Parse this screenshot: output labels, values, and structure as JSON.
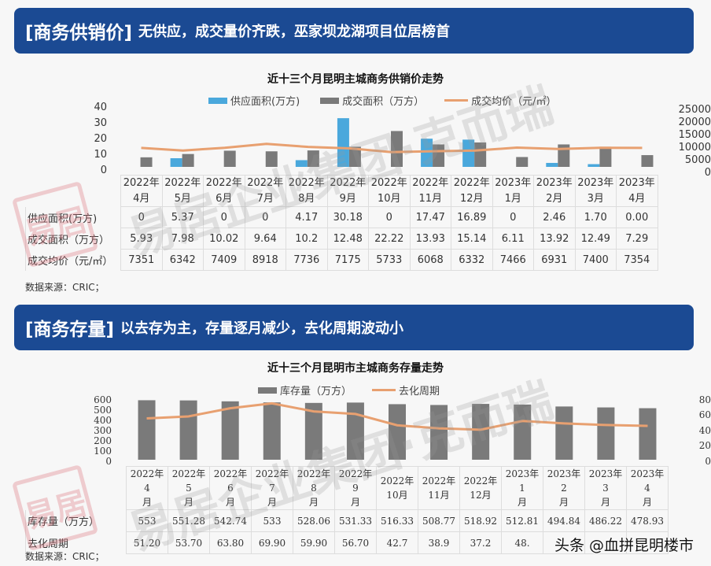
{
  "section1": {
    "tag": "[商务供销价]",
    "subtitle": "无供应，成交量价齐跌，巫家坝龙湖项目位居榜首",
    "chart_title": "近十三个月昆明主城商务供销价走势",
    "legend": [
      "供应面积(万方)",
      "成交面积（万方）",
      "成交均价（元/㎡）"
    ],
    "left_axis": [
      "40",
      "30",
      "20",
      "10",
      "0"
    ],
    "right_axis": [
      "25000",
      "20000",
      "15000",
      "10000",
      "5000",
      "0"
    ],
    "months": [
      [
        "2022年",
        "4月"
      ],
      [
        "2022年",
        "5月"
      ],
      [
        "2022年",
        "6月"
      ],
      [
        "2022年",
        "7月"
      ],
      [
        "2022年",
        "8月"
      ],
      [
        "2022年",
        "9月"
      ],
      [
        "2022年",
        "10月"
      ],
      [
        "2022年",
        "11月"
      ],
      [
        "2022年",
        "12月"
      ],
      [
        "2023年",
        "1月"
      ],
      [
        "2023年",
        "2月"
      ],
      [
        "2023年",
        "3月"
      ],
      [
        "2023年",
        "4月"
      ]
    ],
    "rows": [
      {
        "label": "供应面积(万方)",
        "values": [
          "0",
          "5.37",
          "0",
          "0",
          "4.17",
          "30.18",
          "0",
          "17.47",
          "16.89",
          "0",
          "2.46",
          "1.70",
          "0.00"
        ]
      },
      {
        "label": "成交面积（万方）",
        "values": [
          "5.93",
          "7.98",
          "10.02",
          "9.64",
          "10.2",
          "12.48",
          "22.22",
          "13.93",
          "15.14",
          "6.11",
          "13.92",
          "12.49",
          "7.29"
        ]
      },
      {
        "label": "成交均价（元/㎡）",
        "values": [
          "7351",
          "6342",
          "7409",
          "8918",
          "7736",
          "7175",
          "5733",
          "6068",
          "6332",
          "7466",
          "6931",
          "7400",
          "7354"
        ]
      }
    ],
    "source": "数据来源：CRIC；"
  },
  "section2": {
    "tag": "[商务存量]",
    "subtitle": "以去存为主，存量逐月减少，去化周期波动小",
    "chart_title": "近十三个月昆明市主城商务存量走势",
    "legend": [
      "库存量（万方）",
      "去化周期"
    ],
    "left_axis": [
      "600",
      "500",
      "400",
      "300",
      "200",
      "100",
      "0"
    ],
    "right_axis": [
      "80",
      "60",
      "40",
      "20",
      "0"
    ],
    "months": [
      [
        "2022年4",
        "月"
      ],
      [
        "2022年5",
        "月"
      ],
      [
        "2022年6",
        "月"
      ],
      [
        "2022年7",
        "月"
      ],
      [
        "2022年8",
        "月"
      ],
      [
        "2022年9",
        "月"
      ],
      [
        "2022年",
        "10月"
      ],
      [
        "2022年",
        "11月"
      ],
      [
        "2022年",
        "12月"
      ],
      [
        "2023年1",
        "月"
      ],
      [
        "2023年2",
        "月"
      ],
      [
        "2023年3",
        "月"
      ],
      [
        "2023年4",
        "月"
      ]
    ],
    "rows": [
      {
        "label": "库存量（万方）",
        "values": [
          "553",
          "551.28",
          "542.74",
          "533",
          "528.06",
          "531.33",
          "516.33",
          "508.77",
          "518.92",
          "512.81",
          "494.84",
          "486.22",
          "478.93"
        ]
      },
      {
        "label": "去化周期",
        "values": [
          "51.20",
          "53.70",
          "63.80",
          "69.90",
          "59.90",
          "56.70",
          "42.7",
          "38.9",
          "37.2",
          "48.",
          "",
          "",
          ""
        ]
      }
    ],
    "source": "数据来源：CRIC；"
  },
  "watermarks": {
    "main": "易居企业集团·克而瑞",
    "stamp": "易居",
    "footer": "头条 @血拼昆明楼市"
  },
  "colors": {
    "banner": "#1b4a93",
    "supply": "#4aa8dc",
    "deal": "#7a7a7a",
    "price_line": "#e8a070"
  },
  "chart_data": [
    {
      "type": "bar",
      "title": "近十三个月昆明主城商务供销价走势",
      "categories": [
        "2022年4月",
        "2022年5月",
        "2022年6月",
        "2022年7月",
        "2022年8月",
        "2022年9月",
        "2022年10月",
        "2022年11月",
        "2022年12月",
        "2023年1月",
        "2023年2月",
        "2023年3月",
        "2023年4月"
      ],
      "series": [
        {
          "name": "供应面积(万方)",
          "type": "bar",
          "axis": "left",
          "values": [
            0,
            5.37,
            0,
            0,
            4.17,
            30.18,
            0,
            17.47,
            16.89,
            0,
            2.46,
            1.7,
            0.0
          ]
        },
        {
          "name": "成交面积（万方）",
          "type": "bar",
          "axis": "left",
          "values": [
            5.93,
            7.98,
            10.02,
            9.64,
            10.2,
            12.48,
            22.22,
            13.93,
            15.14,
            6.11,
            13.92,
            12.49,
            7.29
          ]
        },
        {
          "name": "成交均价（元/㎡）",
          "type": "line",
          "axis": "right",
          "values": [
            7351,
            6342,
            7409,
            8918,
            7736,
            7175,
            5733,
            6068,
            6332,
            7466,
            6931,
            7400,
            7354
          ]
        }
      ],
      "ylim": [
        0,
        40
      ],
      "y2lim": [
        0,
        25000
      ],
      "legend_position": "top"
    },
    {
      "type": "bar",
      "title": "近十三个月昆明市主城商务存量走势",
      "categories": [
        "2022年4月",
        "2022年5月",
        "2022年6月",
        "2022年7月",
        "2022年8月",
        "2022年9月",
        "2022年10月",
        "2022年11月",
        "2022年12月",
        "2023年1月",
        "2023年2月",
        "2023年3月",
        "2023年4月"
      ],
      "series": [
        {
          "name": "库存量（万方）",
          "type": "bar",
          "axis": "left",
          "values": [
            553,
            551.28,
            542.74,
            533,
            528.06,
            531.33,
            516.33,
            508.77,
            518.92,
            512.81,
            494.84,
            486.22,
            478.93
          ]
        },
        {
          "name": "去化周期",
          "type": "line",
          "axis": "right",
          "values": [
            51.2,
            53.7,
            63.8,
            69.9,
            59.9,
            56.7,
            42.7,
            38.9,
            37.2,
            48,
            45,
            43,
            42
          ]
        }
      ],
      "ylim": [
        0,
        600
      ],
      "y2lim": [
        0,
        80
      ],
      "legend_position": "top"
    }
  ]
}
